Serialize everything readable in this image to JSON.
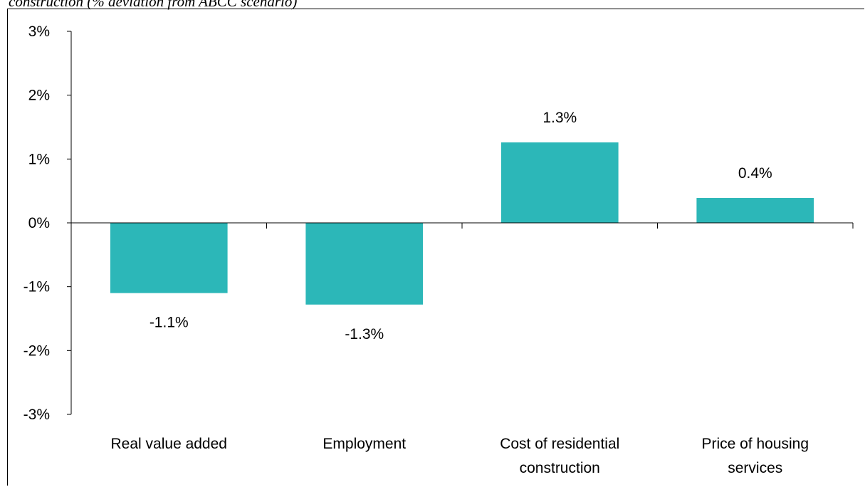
{
  "caption": "construction (% deviation from ABCC scenario)",
  "chart_data": {
    "type": "bar",
    "categories": [
      [
        "Real value added"
      ],
      [
        "Employment"
      ],
      [
        "Cost of residential",
        "construction"
      ],
      [
        "Price of housing",
        "services"
      ]
    ],
    "values": [
      -1.1,
      -1.28,
      1.26,
      0.39
    ],
    "data_labels": [
      "-1.1%",
      "-1.3%",
      "1.3%",
      "0.4%"
    ],
    "ylim": [
      -3,
      3
    ],
    "yticks": [
      3,
      2,
      1,
      0,
      -1,
      -2,
      -3
    ],
    "ytick_labels": [
      "3%",
      "2%",
      "1%",
      "0%",
      "-1%",
      "-2%",
      "-3%"
    ],
    "bar_color": "#2cb7b8",
    "grid": false,
    "legend": "none"
  }
}
